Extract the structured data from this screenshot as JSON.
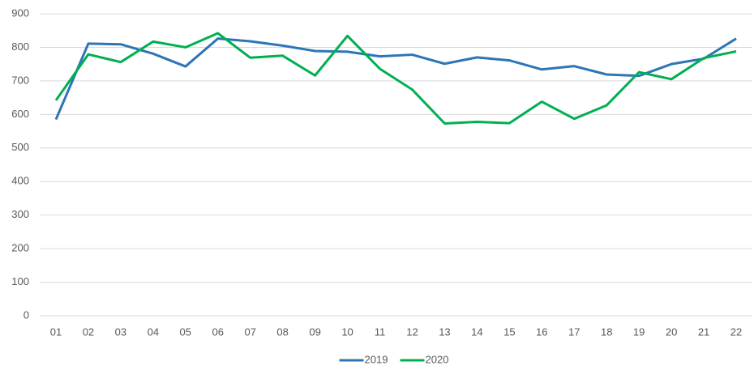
{
  "chart_data": {
    "type": "line",
    "categories": [
      "01",
      "02",
      "03",
      "04",
      "05",
      "06",
      "07",
      "08",
      "09",
      "10",
      "11",
      "12",
      "13",
      "14",
      "15",
      "16",
      "17",
      "18",
      "19",
      "20",
      "21",
      "22"
    ],
    "series": [
      {
        "name": "2019",
        "color": "#2e75b6",
        "values": [
          585,
          811,
          809,
          781,
          743,
          826,
          818,
          805,
          789,
          787,
          773,
          778,
          751,
          770,
          761,
          734,
          744,
          719,
          715,
          750,
          766,
          826
        ]
      },
      {
        "name": "2020",
        "color": "#00b050",
        "values": [
          642,
          779,
          756,
          817,
          800,
          842,
          769,
          775,
          716,
          834,
          736,
          674,
          573,
          578,
          574,
          638,
          587,
          627,
          726,
          705,
          768,
          788
        ]
      }
    ],
    "ylim": [
      0,
      900
    ],
    "yticks": [
      0,
      100,
      200,
      300,
      400,
      500,
      600,
      700,
      800,
      900
    ],
    "grid": true,
    "legend": "bottom"
  }
}
